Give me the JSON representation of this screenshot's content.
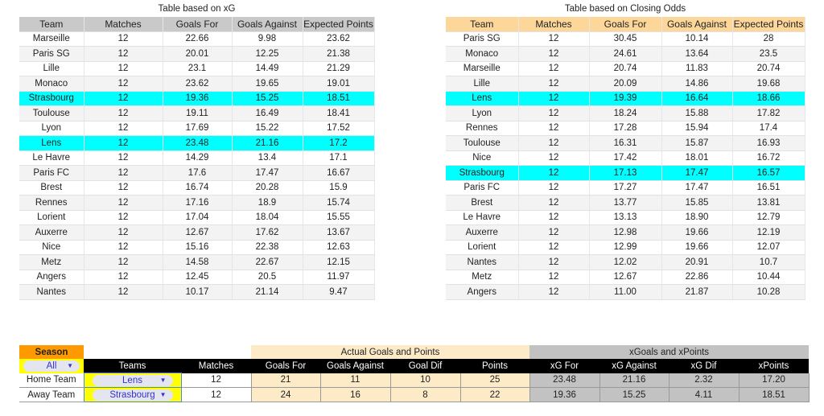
{
  "xg_table": {
    "title": "Table based on xG",
    "headers": [
      "Team",
      "Matches",
      "Goals For",
      "Goals Against",
      "Expected Points"
    ],
    "highlight": [
      "Strasbourg",
      "Lens"
    ],
    "rows": [
      [
        "Marseille",
        "12",
        "22.66",
        "9.98",
        "23.62"
      ],
      [
        "Paris SG",
        "12",
        "20.01",
        "12.25",
        "21.38"
      ],
      [
        "Lille",
        "12",
        "23.1",
        "14.49",
        "21.29"
      ],
      [
        "Monaco",
        "12",
        "23.62",
        "19.65",
        "19.01"
      ],
      [
        "Strasbourg",
        "12",
        "19.36",
        "15.25",
        "18.51"
      ],
      [
        "Toulouse",
        "12",
        "19.11",
        "16.49",
        "18.41"
      ],
      [
        "Lyon",
        "12",
        "17.69",
        "15.22",
        "17.52"
      ],
      [
        "Lens",
        "12",
        "23.48",
        "21.16",
        "17.2"
      ],
      [
        "Le Havre",
        "12",
        "14.29",
        "13.4",
        "17.1"
      ],
      [
        "Paris FC",
        "12",
        "17.6",
        "17.47",
        "16.67"
      ],
      [
        "Brest",
        "12",
        "16.74",
        "20.28",
        "15.9"
      ],
      [
        "Rennes",
        "12",
        "17.16",
        "18.9",
        "15.74"
      ],
      [
        "Lorient",
        "12",
        "17.04",
        "18.04",
        "15.55"
      ],
      [
        "Auxerre",
        "12",
        "12.67",
        "17.62",
        "13.67"
      ],
      [
        "Nice",
        "12",
        "15.16",
        "22.38",
        "12.63"
      ],
      [
        "Metz",
        "12",
        "14.58",
        "22.67",
        "12.15"
      ],
      [
        "Angers",
        "12",
        "12.45",
        "20.5",
        "11.97"
      ],
      [
        "Nantes",
        "12",
        "10.17",
        "21.14",
        "9.47"
      ]
    ]
  },
  "odds_table": {
    "title": "Table based on Closing Odds",
    "headers": [
      "Team",
      "Matches",
      "Goals For",
      "Goals Against",
      "Expected Points"
    ],
    "rows": [
      [
        "Paris SG",
        "12",
        "30.45",
        "10.14",
        "28"
      ],
      [
        "Monaco",
        "12",
        "24.61",
        "13.64",
        "23.5"
      ],
      [
        "Marseille",
        "12",
        "20.74",
        "11.83",
        "20.74"
      ],
      [
        "Lille",
        "12",
        "20.09",
        "14.86",
        "19.68"
      ],
      [
        "Lens",
        "12",
        "19.39",
        "16.64",
        "18.66"
      ],
      [
        "Lyon",
        "12",
        "18.24",
        "15.88",
        "17.82"
      ],
      [
        "Rennes",
        "12",
        "17.28",
        "15.94",
        "17.4"
      ],
      [
        "Toulouse",
        "12",
        "16.31",
        "15.87",
        "16.93"
      ],
      [
        "Nice",
        "12",
        "17.42",
        "18.01",
        "16.72"
      ],
      [
        "Strasbourg",
        "12",
        "17.13",
        "17.47",
        "16.57"
      ],
      [
        "Paris FC",
        "12",
        "17.27",
        "17.47",
        "16.51"
      ],
      [
        "Brest",
        "12",
        "13.77",
        "15.85",
        "13.81"
      ],
      [
        "Le Havre",
        "12",
        "13.13",
        "18.90",
        "12.79"
      ],
      [
        "Auxerre",
        "12",
        "12.98",
        "19.66",
        "12.19"
      ],
      [
        "Lorient",
        "12",
        "12.99",
        "19.66",
        "12.07"
      ],
      [
        "Nantes",
        "12",
        "12.02",
        "20.91",
        "10.7"
      ],
      [
        "Metz",
        "12",
        "12.67",
        "22.86",
        "10.44"
      ],
      [
        "Angers",
        "12",
        "11.00",
        "21.87",
        "10.28"
      ]
    ]
  },
  "comparison": {
    "season_label": "Season",
    "season_value": "All",
    "actual_group": "Actual Goals and Points",
    "xg_group": "xGoals and xPoints",
    "headers": [
      "Teams",
      "Matches",
      "Goals For",
      "Goals Against",
      "Goal Dif",
      "Points",
      "xG For",
      "xG Against",
      "xG Dif",
      "xPoints"
    ],
    "rows": [
      {
        "label": "Home Team",
        "team": "Lens",
        "values": [
          "12",
          "21",
          "11",
          "10",
          "25",
          "23.48",
          "21.16",
          "2.32",
          "17.20"
        ]
      },
      {
        "label": "Away Team",
        "team": "Strasbourg",
        "values": [
          "12",
          "24",
          "16",
          "8",
          "22",
          "19.36",
          "15.25",
          "4.11",
          "18.51"
        ]
      }
    ]
  },
  "colors": {
    "highlight": "#00ffff",
    "xg_header": "#c9c9c9",
    "odds_header": "#fdd79a",
    "season": "#ff9900",
    "dropdown_bg": "#ffff00"
  }
}
